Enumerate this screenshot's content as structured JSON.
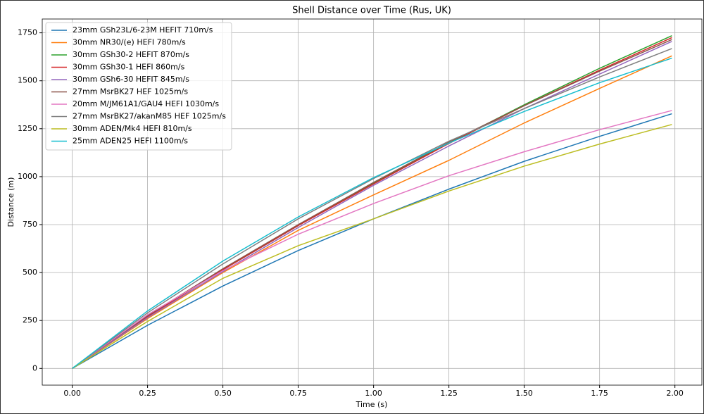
{
  "chart_data": {
    "type": "line",
    "title": "Shell Distance over Time (Rus, UK)",
    "x_label": "Time (s)",
    "y_label": "Distance (m)",
    "x": [
      0,
      0.25,
      0.5,
      0.75,
      1.0,
      1.25,
      1.5,
      1.75,
      1.99
    ],
    "xlim": [
      -0.0995,
      2.0895
    ],
    "xticks": [
      {
        "value": 0,
        "label": "0.00"
      },
      {
        "value": 0.25,
        "label": "0.25"
      },
      {
        "value": 0.5,
        "label": "0.50"
      },
      {
        "value": 0.75,
        "label": "0.75"
      },
      {
        "value": 1,
        "label": "1.00"
      },
      {
        "value": 1.25,
        "label": "1.25"
      },
      {
        "value": 1.5,
        "label": "1.50"
      },
      {
        "value": 1.75,
        "label": "1.75"
      },
      {
        "value": 2,
        "label": "2.00"
      }
    ],
    "ylim": [
      -87,
      1822
    ],
    "yticks": [
      0,
      250,
      500,
      750,
      1000,
      1250,
      1500,
      1750
    ],
    "grid": true,
    "legend": "upper-left",
    "series": [
      {
        "name": "23mm GSh23L/6-23M HEFIT 710m/s",
        "color": "#1f77b4",
        "values": [
          0,
          225,
          430,
          615,
          780,
          935,
          1080,
          1210,
          1328
        ]
      },
      {
        "name": "30mm NR30/(e) HEFI 780m/s",
        "color": "#ff7f0e",
        "values": [
          0,
          260,
          500,
          720,
          905,
          1085,
          1280,
          1460,
          1630
        ]
      },
      {
        "name": "30mm GSh30-2 HEFIT 870m/s",
        "color": "#2ca02c",
        "values": [
          0,
          270,
          515,
          745,
          965,
          1175,
          1375,
          1565,
          1735
        ]
      },
      {
        "name": "30mm GSh30-1 HEFI 860m/s",
        "color": "#d62728",
        "values": [
          0,
          270,
          515,
          745,
          962,
          1173,
          1370,
          1555,
          1725
        ]
      },
      {
        "name": "30mm GSh6-30 HEFIT 845m/s",
        "color": "#9467bd",
        "values": [
          0,
          265,
          505,
          735,
          955,
          1160,
          1355,
          1535,
          1705
        ]
      },
      {
        "name": "27mm MsrBK27 HEF 1025m/s",
        "color": "#8c564b",
        "values": [
          0,
          275,
          520,
          750,
          970,
          1180,
          1370,
          1550,
          1715
        ]
      },
      {
        "name": "20mm M/JM61A1/GAU4 HEFI 1030m/s",
        "color": "#e377c2",
        "values": [
          0,
          280,
          510,
          700,
          860,
          1005,
          1130,
          1245,
          1345
        ]
      },
      {
        "name": "27mm MsrBK27/akanM85 HEF 1025m/s",
        "color": "#7f7f7f",
        "values": [
          0,
          290,
          545,
          780,
          990,
          1185,
          1355,
          1520,
          1668
        ]
      },
      {
        "name": "30mm ADEN/Mk4 HEFI 810m/s",
        "color": "#bcbd22",
        "values": [
          0,
          245,
          470,
          640,
          780,
          925,
          1055,
          1170,
          1272
        ]
      },
      {
        "name": "25mm ADEN25 HEFI 1100m/s",
        "color": "#17becf",
        "values": [
          0,
          300,
          560,
          790,
          995,
          1175,
          1340,
          1490,
          1618
        ]
      }
    ]
  }
}
